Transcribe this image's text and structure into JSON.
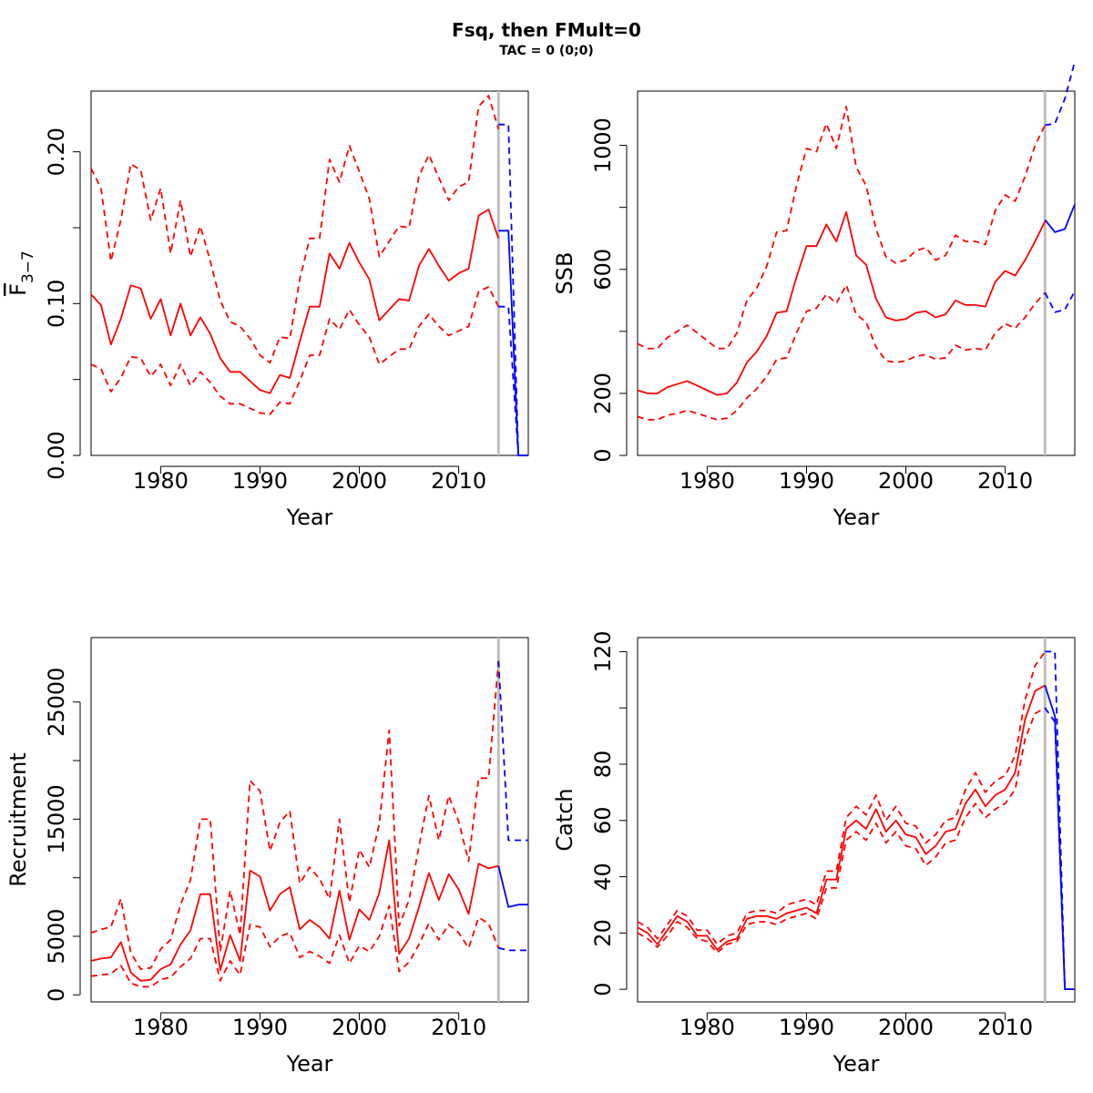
{
  "header": {
    "title": "Fsq, then FMult=0",
    "subtitle": "TAC = 0 (0;0)"
  },
  "colors": {
    "history": "#ff0000",
    "forecast": "#0000ff",
    "divider": "#bebebe"
  },
  "chart_data": [
    {
      "type": "line",
      "ylabel_main": "F",
      "ylabel_sub": "3−7",
      "xlabel": "Year",
      "xlim": [
        1973,
        2017
      ],
      "ylim": [
        0,
        0.24
      ],
      "xticks": [
        1980,
        1990,
        2000,
        2010
      ],
      "yticks": [
        0,
        0.05,
        0.1,
        0.15,
        0.2
      ],
      "ytick_labels": [
        "0.00",
        "",
        "0.10",
        "",
        "0.20"
      ],
      "divider_year": 2014,
      "years": [
        1973,
        1974,
        1975,
        1976,
        1977,
        1978,
        1979,
        1980,
        1981,
        1982,
        1983,
        1984,
        1985,
        1986,
        1987,
        1988,
        1989,
        1990,
        1991,
        1992,
        1993,
        1994,
        1995,
        1996,
        1997,
        1998,
        1999,
        2000,
        2001,
        2002,
        2003,
        2004,
        2005,
        2006,
        2007,
        2008,
        2009,
        2010,
        2011,
        2012,
        2013,
        2014
      ],
      "series": [
        {
          "role": "estimate",
          "values": [
            0.106,
            0.099,
            0.073,
            0.09,
            0.112,
            0.11,
            0.09,
            0.103,
            0.079,
            0.1,
            0.079,
            0.091,
            0.08,
            0.064,
            0.055,
            0.055,
            0.049,
            0.043,
            0.041,
            0.053,
            0.051,
            0.075,
            0.098,
            0.098,
            0.133,
            0.123,
            0.14,
            0.127,
            0.116,
            0.089,
            0.096,
            0.103,
            0.102,
            0.125,
            0.136,
            0.125,
            0.115,
            0.12,
            0.123,
            0.158,
            0.162,
            0.143
          ]
        },
        {
          "role": "upper",
          "values": [
            0.189,
            0.176,
            0.128,
            0.155,
            0.192,
            0.188,
            0.155,
            0.176,
            0.133,
            0.168,
            0.131,
            0.151,
            0.128,
            0.102,
            0.088,
            0.085,
            0.077,
            0.066,
            0.061,
            0.078,
            0.077,
            0.116,
            0.143,
            0.143,
            0.195,
            0.18,
            0.204,
            0.187,
            0.169,
            0.131,
            0.141,
            0.151,
            0.15,
            0.184,
            0.198,
            0.183,
            0.168,
            0.177,
            0.18,
            0.23,
            0.237,
            0.215
          ]
        },
        {
          "role": "lower",
          "values": [
            0.06,
            0.057,
            0.042,
            0.051,
            0.065,
            0.064,
            0.052,
            0.06,
            0.046,
            0.06,
            0.046,
            0.055,
            0.048,
            0.039,
            0.034,
            0.034,
            0.031,
            0.028,
            0.027,
            0.035,
            0.034,
            0.049,
            0.066,
            0.066,
            0.09,
            0.083,
            0.096,
            0.086,
            0.078,
            0.06,
            0.065,
            0.07,
            0.07,
            0.085,
            0.093,
            0.085,
            0.079,
            0.082,
            0.085,
            0.108,
            0.111,
            0.098
          ]
        }
      ],
      "forecast": {
        "years": [
          2014,
          2015,
          2016,
          2017
        ],
        "estimate": [
          0.148,
          0.148,
          0,
          0
        ],
        "upper": [
          0.218,
          0.218,
          0,
          0
        ],
        "lower": [
          0.098,
          0.098,
          0,
          0
        ]
      }
    },
    {
      "type": "line",
      "ylabel_main": "SSB",
      "ylabel_sub": "",
      "xlabel": "Year",
      "xlim": [
        1973,
        2017
      ],
      "ylim": [
        0,
        1175
      ],
      "xticks": [
        1980,
        1990,
        2000,
        2010
      ],
      "yticks": [
        0,
        200,
        400,
        600,
        800,
        1000
      ],
      "ytick_labels": [
        "0",
        "200",
        "",
        "600",
        "",
        "1000"
      ],
      "divider_year": 2014,
      "years": [
        1973,
        1974,
        1975,
        1976,
        1977,
        1978,
        1979,
        1980,
        1981,
        1982,
        1983,
        1984,
        1985,
        1986,
        1987,
        1988,
        1989,
        1990,
        1991,
        1992,
        1993,
        1994,
        1995,
        1996,
        1997,
        1998,
        1999,
        2000,
        2001,
        2002,
        2003,
        2004,
        2005,
        2006,
        2007,
        2008,
        2009,
        2010,
        2011,
        2012,
        2013,
        2014
      ],
      "series": [
        {
          "role": "estimate",
          "values": [
            210,
            200,
            200,
            220,
            230,
            240,
            225,
            210,
            195,
            200,
            235,
            300,
            335,
            385,
            460,
            465,
            575,
            675,
            675,
            745,
            690,
            785,
            645,
            615,
            505,
            445,
            435,
            440,
            460,
            465,
            445,
            455,
            500,
            485,
            485,
            480,
            560,
            595,
            580,
            630,
            690,
            755
          ]
        },
        {
          "role": "upper",
          "values": [
            360,
            345,
            345,
            380,
            400,
            420,
            395,
            370,
            345,
            345,
            395,
            500,
            540,
            610,
            720,
            725,
            870,
            990,
            980,
            1070,
            990,
            1125,
            930,
            870,
            730,
            640,
            620,
            630,
            660,
            670,
            630,
            645,
            710,
            690,
            690,
            680,
            790,
            840,
            820,
            900,
            1000,
            1065
          ]
        },
        {
          "role": "lower",
          "values": [
            125,
            115,
            115,
            130,
            135,
            145,
            135,
            125,
            115,
            120,
            145,
            185,
            215,
            255,
            310,
            315,
            395,
            465,
            475,
            520,
            490,
            550,
            455,
            430,
            350,
            305,
            300,
            305,
            320,
            325,
            310,
            315,
            355,
            340,
            345,
            340,
            395,
            425,
            410,
            445,
            490,
            525
          ]
        }
      ],
      "forecast": {
        "years": [
          2014,
          2015,
          2016,
          2017
        ],
        "estimate": [
          760,
          720,
          730,
          810
        ],
        "upper": [
          1065,
          1070,
          1150,
          1270
        ],
        "lower": [
          525,
          462,
          470,
          530
        ]
      }
    },
    {
      "type": "line",
      "ylabel_main": "Recruitment",
      "ylabel_sub": "",
      "xlabel": "Year",
      "xlim": [
        1973,
        2017
      ],
      "ylim": [
        -600,
        30500
      ],
      "xticks": [
        1980,
        1990,
        2000,
        2010
      ],
      "yticks": [
        0,
        5000,
        10000,
        15000,
        20000,
        25000
      ],
      "ytick_labels": [
        "0",
        "5000",
        "",
        "15000",
        "",
        "25000"
      ],
      "divider_year": 2014,
      "years": [
        1973,
        1974,
        1975,
        1976,
        1977,
        1978,
        1979,
        1980,
        1981,
        1982,
        1983,
        1984,
        1985,
        1986,
        1987,
        1988,
        1989,
        1990,
        1991,
        1992,
        1993,
        1994,
        1995,
        1996,
        1997,
        1998,
        1999,
        2000,
        2001,
        2002,
        2003,
        2004,
        2005,
        2006,
        2007,
        2008,
        2009,
        2010,
        2011,
        2012,
        2013,
        2014
      ],
      "series": [
        {
          "role": "estimate",
          "values": [
            2900,
            3100,
            3200,
            4500,
            1900,
            1200,
            1300,
            2200,
            2600,
            4300,
            5500,
            8600,
            8600,
            2100,
            5100,
            2900,
            10600,
            10100,
            7200,
            8600,
            9200,
            5600,
            6400,
            5800,
            4800,
            8900,
            4700,
            7300,
            6400,
            8700,
            13200,
            3500,
            4800,
            7500,
            10400,
            8100,
            10300,
            9000,
            6900,
            11200,
            10800,
            11000
          ]
        },
        {
          "role": "upper",
          "values": [
            5300,
            5600,
            5800,
            8200,
            3600,
            2200,
            2300,
            3900,
            4700,
            7700,
            9800,
            15000,
            15000,
            3700,
            8900,
            5100,
            18300,
            17400,
            12300,
            14700,
            15700,
            9500,
            10900,
            9900,
            8200,
            15000,
            7900,
            12400,
            10900,
            14600,
            22600,
            5900,
            8100,
            12700,
            17000,
            13200,
            17000,
            14800,
            11400,
            18500,
            18500,
            28500
          ]
        },
        {
          "role": "lower",
          "values": [
            1600,
            1700,
            1800,
            2500,
            1000,
            700,
            700,
            1300,
            1500,
            2400,
            3100,
            4800,
            4800,
            1200,
            2900,
            1700,
            6000,
            5800,
            4100,
            5000,
            5300,
            3200,
            3700,
            3300,
            2700,
            5100,
            2700,
            4200,
            3700,
            5000,
            7600,
            2000,
            2800,
            4300,
            6100,
            4700,
            6000,
            5300,
            4000,
            6600,
            6100,
            4000
          ]
        }
      ],
      "forecast": {
        "years": [
          2014,
          2015,
          2016,
          2017
        ],
        "estimate": [
          11000,
          7500,
          7700,
          7700
        ],
        "upper": [
          28500,
          13200,
          13200,
          13200
        ],
        "lower": [
          4000,
          3800,
          3800,
          3800
        ]
      }
    },
    {
      "type": "line",
      "ylabel_main": "Catch",
      "ylabel_sub": "",
      "xlabel": "Year",
      "xlim": [
        1973,
        2017
      ],
      "ylim": [
        -4.5,
        125
      ],
      "xticks": [
        1980,
        1990,
        2000,
        2010
      ],
      "yticks": [
        0,
        20,
        40,
        60,
        80,
        100,
        120
      ],
      "ytick_labels": [
        "0",
        "20",
        "40",
        "60",
        "80",
        "",
        "120"
      ],
      "divider_year": 2014,
      "years": [
        1973,
        1974,
        1975,
        1976,
        1977,
        1978,
        1979,
        1980,
        1981,
        1982,
        1983,
        1984,
        1985,
        1986,
        1987,
        1988,
        1989,
        1990,
        1991,
        1992,
        1993,
        1994,
        1995,
        1996,
        1997,
        1998,
        1999,
        2000,
        2001,
        2002,
        2003,
        2004,
        2005,
        2006,
        2007,
        2008,
        2009,
        2010,
        2011,
        2012,
        2013,
        2014
      ],
      "series": [
        {
          "role": "estimate",
          "values": [
            22,
            20,
            16,
            21,
            26,
            24,
            19,
            19,
            14,
            17,
            18,
            25,
            26,
            26,
            25,
            27,
            28,
            29,
            27,
            39,
            39,
            57,
            60,
            57,
            64,
            56,
            60,
            55,
            54,
            48,
            51,
            56,
            57,
            66,
            71,
            65,
            69,
            71,
            77,
            96,
            106,
            108
          ]
        },
        {
          "role": "upper",
          "values": [
            24,
            22,
            18,
            23,
            28,
            26,
            21,
            21,
            16,
            19,
            20,
            27,
            28,
            28,
            27,
            30,
            31,
            32,
            30,
            42,
            42,
            61,
            65,
            62,
            69,
            60,
            65,
            59,
            58,
            52,
            55,
            60,
            61,
            71,
            77,
            70,
            74,
            76,
            83,
            103,
            115,
            120
          ]
        },
        {
          "role": "lower",
          "values": [
            20,
            18,
            15,
            19,
            24,
            22,
            18,
            17,
            13,
            16,
            17,
            23,
            24,
            24,
            23,
            25,
            26,
            27,
            25,
            36,
            36,
            53,
            56,
            53,
            59,
            52,
            56,
            51,
            50,
            44,
            47,
            52,
            53,
            61,
            66,
            61,
            64,
            66,
            71,
            89,
            98,
            100
          ]
        }
      ],
      "forecast": {
        "years": [
          2014,
          2015,
          2016,
          2017
        ],
        "estimate": [
          108,
          97,
          0,
          0
        ],
        "upper": [
          120,
          120,
          0,
          0
        ],
        "lower": [
          100,
          95,
          0,
          0
        ]
      }
    }
  ]
}
